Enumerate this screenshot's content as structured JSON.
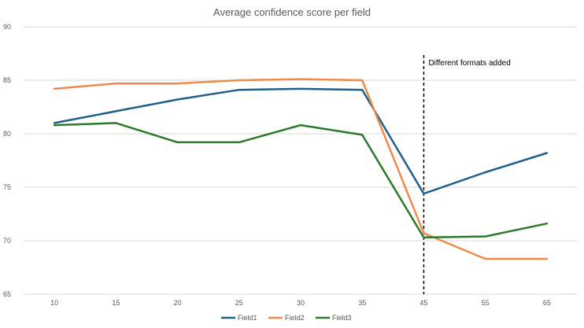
{
  "chart_data": {
    "type": "line",
    "title": "Average confidence score per field",
    "categories": [
      "10",
      "15",
      "20",
      "25",
      "30",
      "35",
      "45",
      "55",
      "65"
    ],
    "ylim": [
      65,
      90
    ],
    "yticks": [
      65,
      70,
      75,
      80,
      85,
      90
    ],
    "grid": true,
    "legend_position": "bottom",
    "series": [
      {
        "name": "Field1",
        "color": "#1f5f8b",
        "values": [
          81.0,
          82.1,
          83.2,
          84.1,
          84.2,
          84.1,
          74.4,
          76.4,
          78.2
        ]
      },
      {
        "name": "Field2",
        "color": "#ee8a4c",
        "values": [
          84.2,
          84.7,
          84.7,
          85.0,
          85.1,
          85.0,
          70.7,
          68.3,
          68.3
        ]
      },
      {
        "name": "Field3",
        "color": "#2a7a2a",
        "values": [
          80.8,
          81.0,
          79.2,
          79.2,
          80.8,
          79.9,
          70.3,
          70.4,
          71.6
        ]
      }
    ],
    "annotations": [
      {
        "text": "Different formats added",
        "at_category": "45",
        "style": "dashed-vertical-line"
      }
    ]
  }
}
